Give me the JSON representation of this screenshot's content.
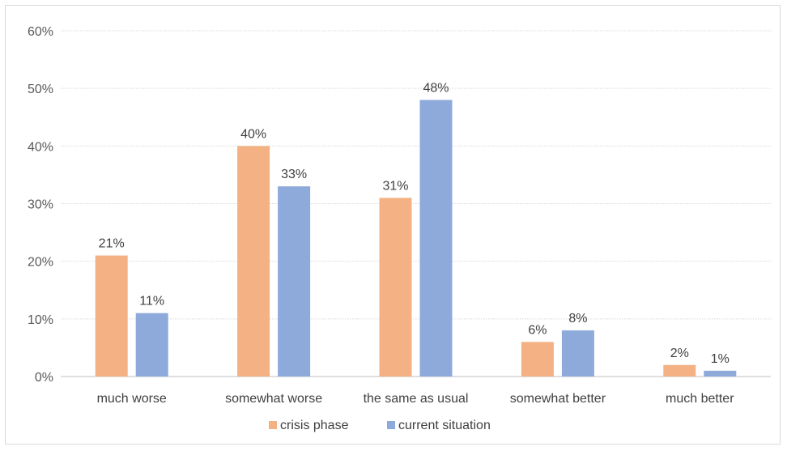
{
  "chart_data": {
    "type": "bar",
    "categories": [
      "much worse",
      "somewhat worse",
      "the same as usual",
      "somewhat better",
      "much better"
    ],
    "series": [
      {
        "name": "crisis phase",
        "values": [
          21,
          40,
          31,
          6,
          2
        ],
        "labels": [
          "21%",
          "40%",
          "31%",
          "6%",
          "2%"
        ],
        "color": "#F4B183"
      },
      {
        "name": "current situation",
        "values": [
          11,
          33,
          48,
          8,
          1
        ],
        "labels": [
          "11%",
          "33%",
          "48%",
          "8%",
          "1%"
        ],
        "color": "#8EAADB"
      }
    ],
    "y_ticks": [
      "0%",
      "10%",
      "20%",
      "30%",
      "40%",
      "50%",
      "60%"
    ],
    "ylim": [
      0,
      60
    ],
    "grid": true,
    "legend_position": "bottom"
  }
}
